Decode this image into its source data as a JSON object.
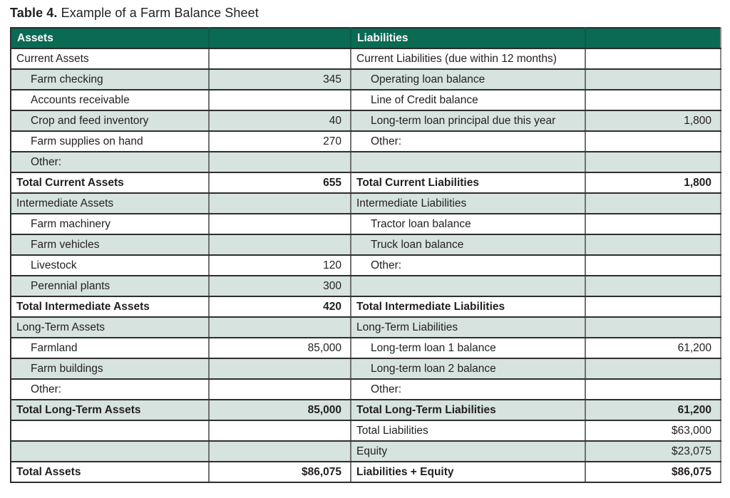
{
  "title": {
    "prefix": "Table 4.",
    "text": " Example of a Farm Balance Sheet"
  },
  "table": {
    "header": {
      "assets": "Assets",
      "liabilities": "Liabilities"
    },
    "colors": {
      "header_bg": "#0a6a54",
      "header_text": "#ffffff",
      "shade_row_bg": "#d6e3df",
      "plain_row_bg": "#ffffff",
      "horizontal_border": "#2e2e2e",
      "vertical_border": "#707070",
      "text": "#231f20"
    },
    "rows": [
      {
        "asset_label": "Current Assets",
        "asset_value": "",
        "liability_label": "Current Liabilities (due within 12 months)",
        "liability_value": "",
        "shade": false,
        "indent": false,
        "bold": false
      },
      {
        "asset_label": "Farm checking",
        "asset_value": "345",
        "liability_label": "Operating loan balance",
        "liability_value": "",
        "shade": true,
        "indent": true,
        "bold": false
      },
      {
        "asset_label": "Accounts receivable",
        "asset_value": "",
        "liability_label": "Line of Credit balance",
        "liability_value": "",
        "shade": false,
        "indent": true,
        "bold": false
      },
      {
        "asset_label": "Crop and feed inventory",
        "asset_value": "40",
        "liability_label": "Long-term loan principal due this year",
        "liability_value": "1,800",
        "shade": true,
        "indent": true,
        "bold": false
      },
      {
        "asset_label": "Farm supplies on hand",
        "asset_value": "270",
        "liability_label": "Other:",
        "liability_value": "",
        "shade": false,
        "indent": true,
        "bold": false
      },
      {
        "asset_label": "Other:",
        "asset_value": "",
        "liability_label": "",
        "liability_value": "",
        "shade": true,
        "indent": true,
        "bold": false
      },
      {
        "asset_label": "Total Current Assets",
        "asset_value": "655",
        "liability_label": "Total Current Liabilities",
        "liability_value": "1,800",
        "shade": false,
        "indent": false,
        "bold": true
      },
      {
        "asset_label": "Intermediate Assets",
        "asset_value": "",
        "liability_label": "Intermediate Liabilities",
        "liability_value": "",
        "shade": true,
        "indent": false,
        "bold": false
      },
      {
        "asset_label": "Farm machinery",
        "asset_value": "",
        "liability_label": "Tractor loan balance",
        "liability_value": "",
        "shade": false,
        "indent": true,
        "bold": false
      },
      {
        "asset_label": "Farm vehicles",
        "asset_value": "",
        "liability_label": "Truck loan balance",
        "liability_value": "",
        "shade": true,
        "indent": true,
        "bold": false
      },
      {
        "asset_label": "Livestock",
        "asset_value": "120",
        "liability_label": "Other:",
        "liability_value": "",
        "shade": false,
        "indent": true,
        "bold": false
      },
      {
        "asset_label": "Perennial plants",
        "asset_value": "300",
        "liability_label": "",
        "liability_value": "",
        "shade": true,
        "indent": true,
        "bold": false
      },
      {
        "asset_label": "Total Intermediate Assets",
        "asset_value": "420",
        "liability_label": "Total Intermediate Liabilities",
        "liability_value": "",
        "shade": false,
        "indent": false,
        "bold": true
      },
      {
        "asset_label": "Long-Term Assets",
        "asset_value": "",
        "liability_label": "Long-Term Liabilities",
        "liability_value": "",
        "shade": true,
        "indent": false,
        "bold": false
      },
      {
        "asset_label": "Farmland",
        "asset_value": "85,000",
        "liability_label": "Long-term loan 1 balance",
        "liability_value": "61,200",
        "shade": false,
        "indent": true,
        "bold": false
      },
      {
        "asset_label": "Farm buildings",
        "asset_value": "",
        "liability_label": "Long-term loan 2 balance",
        "liability_value": "",
        "shade": true,
        "indent": true,
        "bold": false
      },
      {
        "asset_label": "Other:",
        "asset_value": "",
        "liability_label": "Other:",
        "liability_value": "",
        "shade": false,
        "indent": true,
        "bold": false
      },
      {
        "asset_label": "Total Long-Term Assets",
        "asset_value": "85,000",
        "liability_label": "Total Long-Term Liabilities",
        "liability_value": "61,200",
        "shade": true,
        "indent": false,
        "bold": true
      },
      {
        "asset_label": "",
        "asset_value": "",
        "liability_label": "Total Liabilities",
        "liability_value": "$63,000",
        "shade": false,
        "indent": false,
        "bold": false
      },
      {
        "asset_label": "",
        "asset_value": "",
        "liability_label": "Equity",
        "liability_value": "$23,075",
        "shade": true,
        "indent": false,
        "bold": false
      },
      {
        "asset_label": "Total Assets",
        "asset_value": "$86,075",
        "liability_label": "Liabilities + Equity",
        "liability_value": "$86,075",
        "shade": false,
        "indent": false,
        "bold": true
      }
    ]
  }
}
